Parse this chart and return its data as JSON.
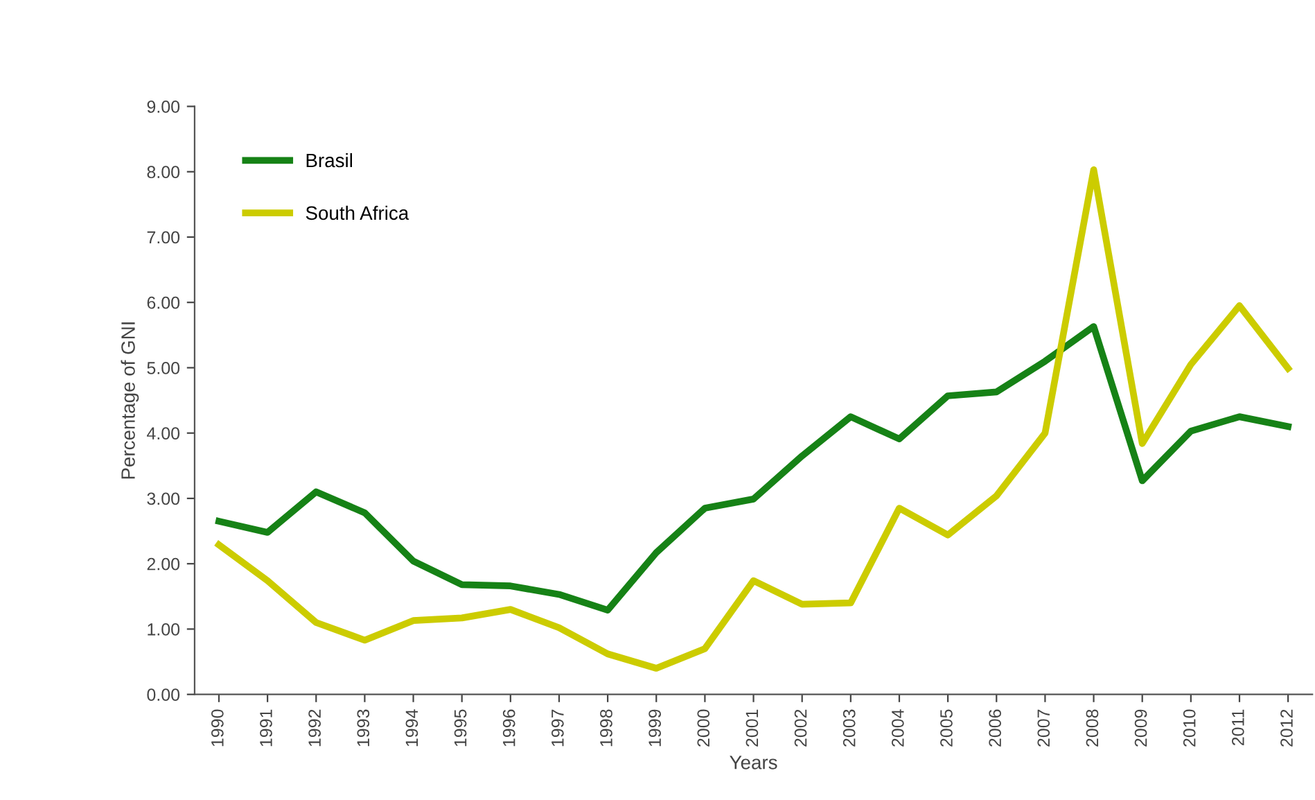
{
  "chart_data": {
    "type": "line",
    "xlabel": "Years",
    "ylabel": "Percentage of GNI",
    "categories": [
      "1990",
      "1991",
      "1992",
      "1993",
      "1994",
      "1995",
      "1996",
      "1997",
      "1998",
      "1999",
      "2000",
      "2001",
      "2002",
      "2003",
      "2004",
      "2005",
      "2006",
      "2007",
      "2008",
      "2009",
      "2010",
      "2011",
      "2012"
    ],
    "series": [
      {
        "name": "Brasil",
        "color": "#168216",
        "values": [
          2.65,
          2.48,
          3.1,
          2.78,
          2.04,
          1.68,
          1.66,
          1.53,
          1.29,
          2.17,
          2.85,
          2.99,
          3.65,
          4.25,
          3.91,
          4.57,
          4.63,
          5.1,
          5.63,
          3.27,
          4.03,
          4.25,
          4.1
        ]
      },
      {
        "name": "South Africa",
        "color": "#cccc00",
        "values": [
          2.29,
          1.74,
          1.1,
          0.83,
          1.13,
          1.17,
          1.3,
          1.02,
          0.62,
          0.4,
          0.7,
          1.74,
          1.38,
          1.4,
          2.85,
          2.44,
          3.04,
          4.0,
          8.03,
          3.84,
          5.05,
          5.95,
          4.99
        ]
      }
    ],
    "ylim": [
      0,
      9
    ],
    "yticks": [
      {
        "value": 0,
        "label": "0.00"
      },
      {
        "value": 1,
        "label": "1.00"
      },
      {
        "value": 2,
        "label": "2.00"
      },
      {
        "value": 3,
        "label": "3.00"
      },
      {
        "value": 4,
        "label": "4.00"
      },
      {
        "value": 5,
        "label": "5.00"
      },
      {
        "value": 6,
        "label": "6.00"
      },
      {
        "value": 7,
        "label": "7.00"
      },
      {
        "value": 8,
        "label": "8.00"
      },
      {
        "value": 9,
        "label": "9.00"
      }
    ],
    "grid": false,
    "legend": "top left",
    "marker": "none",
    "line_style": "solid"
  }
}
